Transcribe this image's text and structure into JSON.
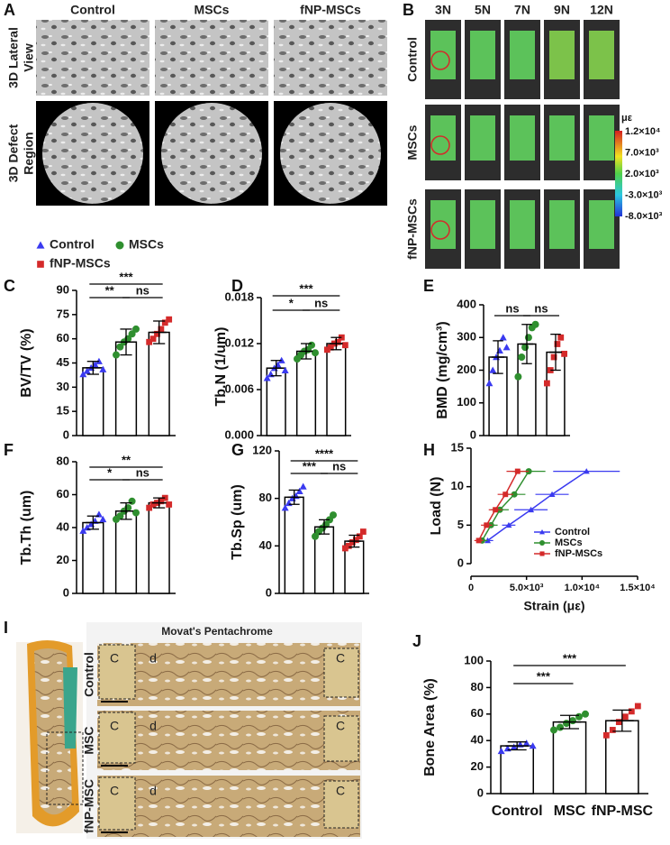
{
  "panels": {
    "A": {
      "label": "A",
      "column_headers": [
        "Control",
        "MSCs",
        "fNP-MSCs"
      ],
      "row_labels": [
        [
          "3D Lateral",
          "View"
        ],
        [
          "3D Defect",
          "Region"
        ]
      ]
    },
    "B": {
      "label": "B",
      "column_headers": [
        "3N",
        "5N",
        "7N",
        "9N",
        "12N"
      ],
      "row_labels": [
        "Control",
        "MSCs",
        "fNP-MSCs"
      ],
      "colorbar_unit": "με",
      "colorbar_labels": [
        "1.2×10⁴",
        "7.0×10³",
        "2.0×10³",
        "-3.0×10³",
        "-8.0×10³"
      ]
    },
    "I": {
      "label": "I",
      "title": "Movat's Pentachrome",
      "row_labels": [
        "Control",
        "MSC",
        "fNP-MSC"
      ],
      "region_labels": [
        [
          "C",
          "d",
          "C"
        ],
        [
          "C",
          "d",
          "C"
        ],
        [
          "C",
          "d",
          "C"
        ]
      ]
    }
  },
  "legend": [
    {
      "name": "Control",
      "color": "#3a3af0",
      "marker": "triangle"
    },
    {
      "name": "MSCs",
      "color": "#2f8f2f",
      "marker": "circle"
    },
    {
      "name": "fNP-MSCs",
      "color": "#d42a2a",
      "marker": "square"
    }
  ],
  "chart_data": [
    {
      "type": "bar",
      "label": "C",
      "y_label": "BV/TV (%)",
      "values": [
        42,
        58,
        64
      ],
      "errors": [
        4,
        8,
        7
      ],
      "points": [
        [
          38,
          40,
          42,
          44,
          46,
          41
        ],
        [
          50,
          55,
          58,
          60,
          63,
          66
        ],
        [
          58,
          60,
          63,
          66,
          70,
          72
        ]
      ],
      "colors": [
        "#3a3af0",
        "#2f8f2f",
        "#d42a2a"
      ],
      "markers": [
        "triangle",
        "circle",
        "square"
      ],
      "ylim": [
        0,
        90
      ],
      "yticks": [
        0,
        15,
        30,
        45,
        60,
        75,
        90
      ],
      "annotations": [
        {
          "text": "**",
          "from": 0,
          "to": 1,
          "level": 0
        },
        {
          "text": "ns",
          "from": 1,
          "to": 2,
          "level": 0
        },
        {
          "text": "***",
          "from": 0,
          "to": 2,
          "level": 1
        }
      ]
    },
    {
      "type": "bar",
      "label": "D",
      "y_label": "Tb.N (1/um)",
      "values": [
        0.0088,
        0.011,
        0.012
      ],
      "errors": [
        0.001,
        0.001,
        0.0008
      ],
      "points": [
        [
          0.0075,
          0.008,
          0.0088,
          0.0092,
          0.0098,
          0.0085
        ],
        [
          0.01,
          0.0105,
          0.011,
          0.0112,
          0.0118,
          0.0108
        ],
        [
          0.0112,
          0.0115,
          0.012,
          0.0122,
          0.0128,
          0.0118
        ]
      ],
      "colors": [
        "#3a3af0",
        "#2f8f2f",
        "#d42a2a"
      ],
      "markers": [
        "triangle",
        "circle",
        "square"
      ],
      "ylim": [
        0,
        0.018
      ],
      "yticks": [
        {
          "value": 0,
          "label": "0.000"
        },
        {
          "value": 0.006,
          "label": "0.006"
        },
        {
          "value": 0.012,
          "label": "0.012"
        },
        {
          "value": 0.018,
          "label": "0.018"
        }
      ],
      "annotations": [
        {
          "text": "*",
          "from": 0,
          "to": 1,
          "level": 0
        },
        {
          "text": "ns",
          "from": 1,
          "to": 2,
          "level": 0
        },
        {
          "text": "***",
          "from": 0,
          "to": 2,
          "level": 1
        }
      ]
    },
    {
      "type": "bar",
      "label": "E",
      "y_label": "BMD (mg/cm³)",
      "values": [
        240,
        280,
        255
      ],
      "errors": [
        50,
        60,
        55
      ],
      "points": [
        [
          160,
          200,
          240,
          260,
          300,
          270
        ],
        [
          180,
          240,
          270,
          300,
          330,
          340
        ],
        [
          160,
          200,
          240,
          280,
          300,
          250
        ]
      ],
      "colors": [
        "#3a3af0",
        "#2f8f2f",
        "#d42a2a"
      ],
      "markers": [
        "triangle",
        "circle",
        "square"
      ],
      "ylim": [
        0,
        400
      ],
      "yticks": [
        0,
        100,
        200,
        300,
        400
      ],
      "annotations": [
        {
          "text": "ns",
          "from": 0,
          "to": 1,
          "level": 0
        },
        {
          "text": "ns",
          "from": 1,
          "to": 2,
          "level": 0
        }
      ]
    },
    {
      "type": "bar",
      "label": "F",
      "y_label": "Tb.Th (um)",
      "values": [
        43,
        50,
        55
      ],
      "errors": [
        4,
        5,
        3
      ],
      "points": [
        [
          38,
          40,
          42,
          44,
          48,
          45
        ],
        [
          45,
          47,
          50,
          52,
          56,
          49
        ],
        [
          52,
          54,
          55,
          56,
          58,
          54
        ]
      ],
      "colors": [
        "#3a3af0",
        "#2f8f2f",
        "#d42a2a"
      ],
      "markers": [
        "triangle",
        "circle",
        "square"
      ],
      "ylim": [
        0,
        80
      ],
      "yticks": [
        0,
        20,
        40,
        60,
        80
      ],
      "annotations": [
        {
          "text": "*",
          "from": 0,
          "to": 1,
          "level": 0
        },
        {
          "text": "ns",
          "from": 1,
          "to": 2,
          "level": 0
        },
        {
          "text": "**",
          "from": 0,
          "to": 2,
          "level": 1
        }
      ]
    },
    {
      "type": "bar",
      "label": "G",
      "y_label": "Tb.Sp (um)",
      "values": [
        81,
        56,
        44
      ],
      "errors": [
        6,
        6,
        5
      ],
      "points": [
        [
          72,
          76,
          80,
          82,
          86,
          90
        ],
        [
          48,
          52,
          55,
          58,
          62,
          66
        ],
        [
          38,
          40,
          43,
          45,
          48,
          52
        ]
      ],
      "colors": [
        "#3a3af0",
        "#2f8f2f",
        "#d42a2a"
      ],
      "markers": [
        "triangle",
        "circle",
        "square"
      ],
      "ylim": [
        0,
        120
      ],
      "yticks": [
        0,
        40,
        80,
        120
      ],
      "annotations": [
        {
          "text": "***",
          "from": 0,
          "to": 1,
          "level": 0
        },
        {
          "text": "ns",
          "from": 1,
          "to": 2,
          "level": 0
        },
        {
          "text": "****",
          "from": 0,
          "to": 2,
          "level": 1
        }
      ]
    },
    {
      "type": "line",
      "label": "H",
      "x_label": "Strain (με)",
      "y_label": "Load (N)",
      "legend": "lower right",
      "xlim": [
        0,
        15000
      ],
      "ylim": [
        0,
        15
      ],
      "xticks": [
        0,
        {
          "value": 5000,
          "label": "5.0×10³"
        },
        {
          "value": 10000,
          "label": "1.0×10⁴"
        },
        {
          "value": 15000,
          "label": "1.5×10⁴"
        }
      ],
      "yticks": [
        0,
        5,
        10,
        15
      ],
      "series": [
        {
          "name": "Control",
          "color": "#3a3af0",
          "marker": "triangle",
          "x": [
            1500,
            3400,
            5400,
            7300,
            10400
          ],
          "xerr": [
            500,
            600,
            1500,
            1500,
            3000
          ],
          "values": [
            3,
            5,
            7,
            9,
            12
          ]
        },
        {
          "name": "MSCs",
          "color": "#2f8f2f",
          "marker": "circle",
          "x": [
            1000,
            1800,
            2600,
            3900,
            5200
          ],
          "xerr": [
            500,
            600,
            800,
            1000,
            1500
          ],
          "values": [
            3,
            5,
            7,
            9,
            12
          ]
        },
        {
          "name": "fNP-MSCs",
          "color": "#d42a2a",
          "marker": "square",
          "x": [
            700,
            1400,
            2200,
            3100,
            4200
          ],
          "xerr": [
            400,
            500,
            600,
            700,
            1000
          ],
          "values": [
            3,
            5,
            7,
            9,
            12
          ]
        }
      ]
    },
    {
      "type": "bar",
      "label": "J",
      "y_label": "Bone Area (%)",
      "categories": [
        "Control",
        "MSC",
        "fNP-MSC"
      ],
      "values": [
        36,
        54,
        55
      ],
      "errors": [
        3,
        5,
        8
      ],
      "points": [
        [
          32,
          34,
          35,
          37,
          38,
          36
        ],
        [
          48,
          50,
          53,
          55,
          58,
          60
        ],
        [
          44,
          48,
          54,
          58,
          62,
          66
        ]
      ],
      "colors": [
        "#3a3af0",
        "#2f8f2f",
        "#d42a2a"
      ],
      "markers": [
        "triangle",
        "circle",
        "square"
      ],
      "ylim": [
        0,
        100
      ],
      "yticks": [
        0,
        20,
        40,
        60,
        80,
        100
      ],
      "annotations": [
        {
          "text": "***",
          "from": 0,
          "to": 1,
          "level": 0
        },
        {
          "text": "***",
          "from": 0,
          "to": 2,
          "level": 1
        }
      ]
    }
  ]
}
